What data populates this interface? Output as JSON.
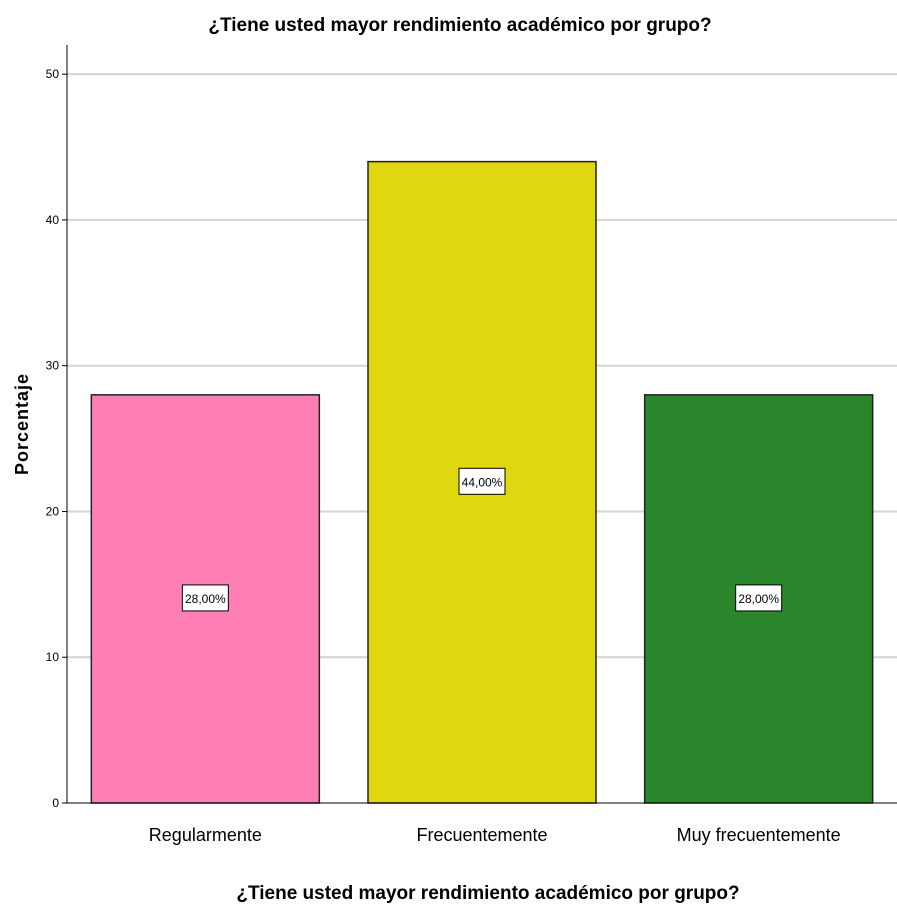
{
  "chart_data": {
    "type": "bar",
    "title": "¿Tiene usted mayor rendimiento académico por grupo?",
    "xlabel": "¿Tiene usted mayor rendimiento académico por grupo?",
    "ylabel": "Porcentaje",
    "categories": [
      "Regularmente",
      "Frecuentemente",
      "Muy frecuentemente"
    ],
    "values": [
      28,
      44,
      28
    ],
    "data_labels": [
      "28,00%",
      "44,00%",
      "28,00%"
    ],
    "colors": [
      "#ff7fb4",
      "#e1d70f",
      "#2a862a"
    ],
    "ylim": [
      0,
      52
    ],
    "yticks": [
      0,
      10,
      20,
      30,
      40,
      50
    ],
    "grid": true,
    "legend": "none"
  }
}
